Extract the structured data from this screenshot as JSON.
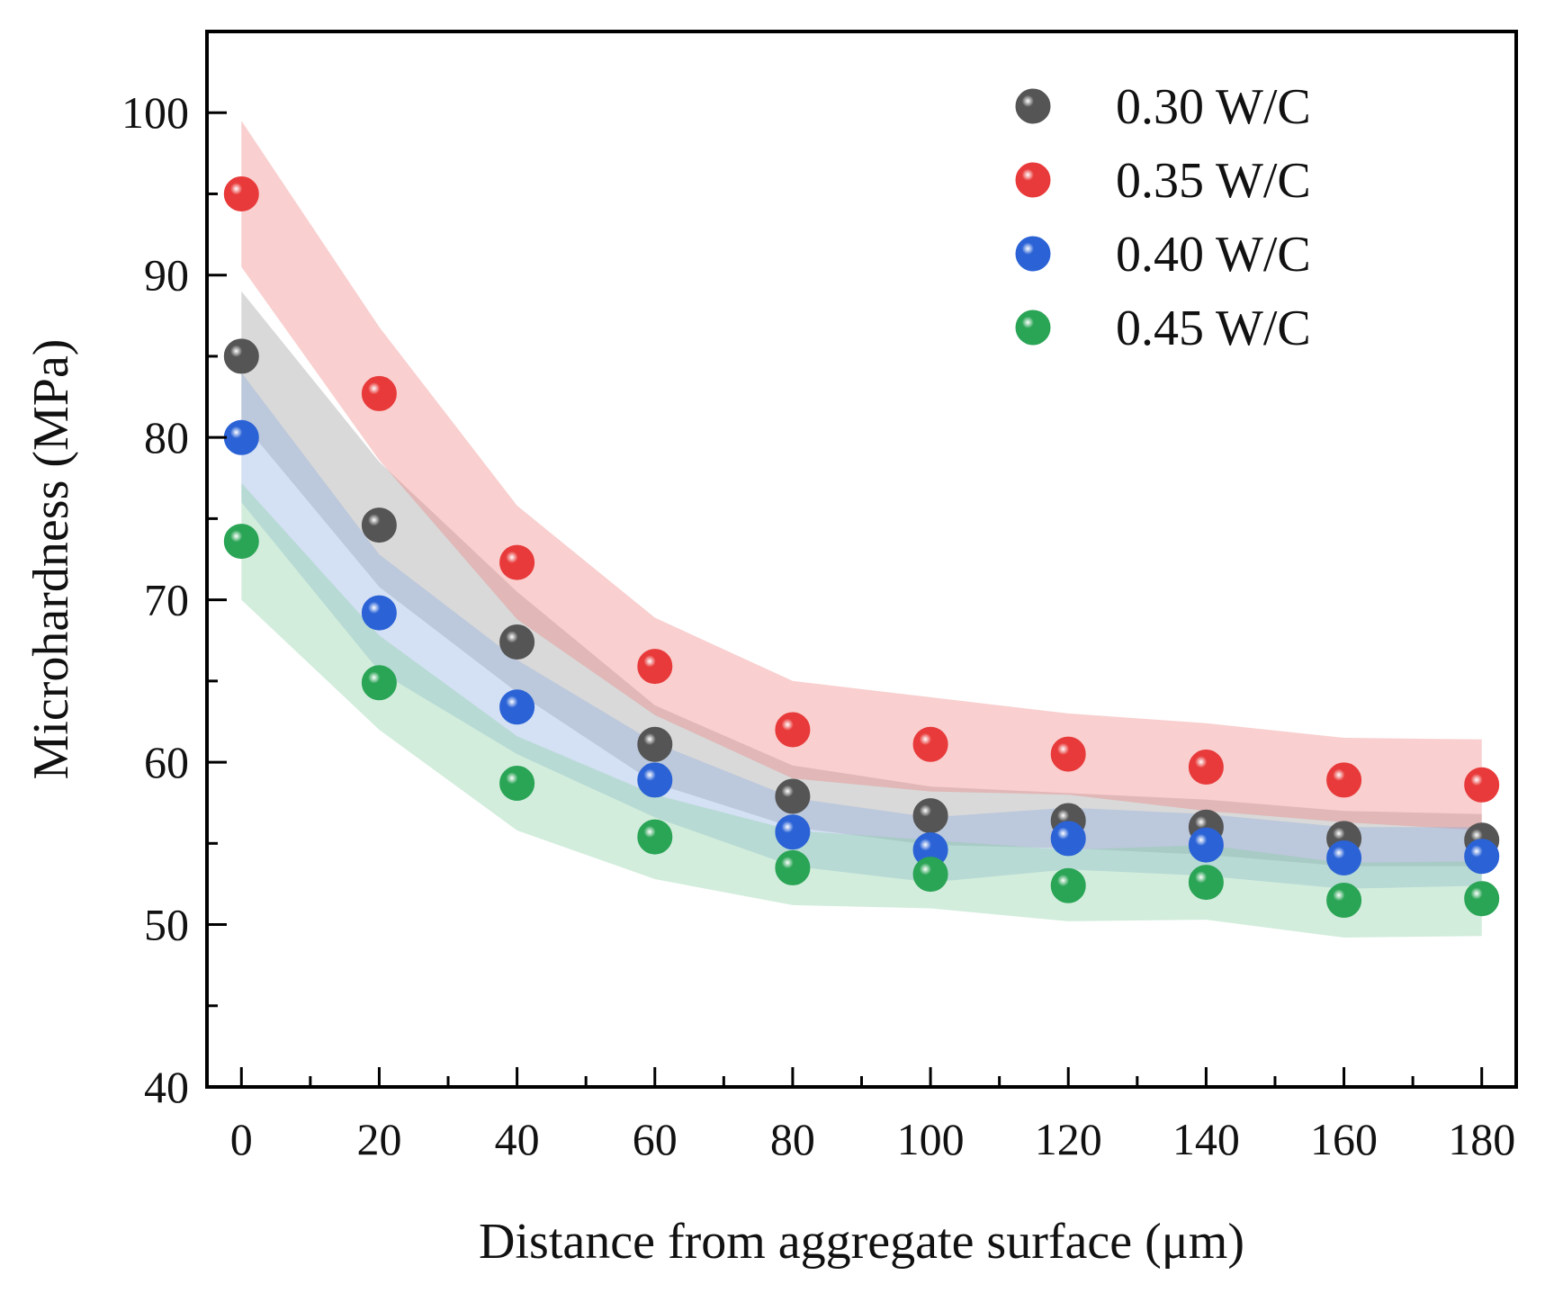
{
  "chart_data": {
    "type": "scatter",
    "title": "",
    "xlabel": "Distance from aggregate surface (μm)",
    "ylabel": "Microhardness (MPa)",
    "xlim": [
      -5,
      185
    ],
    "ylim": [
      40,
      105
    ],
    "xticks": [
      0,
      20,
      40,
      60,
      80,
      100,
      120,
      140,
      160,
      180
    ],
    "yticks": [
      40,
      50,
      60,
      70,
      80,
      90,
      100
    ],
    "x": [
      0,
      20,
      40,
      60,
      80,
      100,
      120,
      140,
      160,
      180
    ],
    "legend_position": "top-right",
    "series": [
      {
        "name": "0.30 W/C",
        "color": "#555555",
        "band_color": "#9a9a9a",
        "values": [
          85,
          74.6,
          67.4,
          61.1,
          57.9,
          56.7,
          56.4,
          56,
          55.3,
          55.2
        ],
        "upper": [
          89,
          78.5,
          70.5,
          63.5,
          59.8,
          58.5,
          58.1,
          57.7,
          57,
          56.8
        ],
        "lower": [
          81,
          70.8,
          64.3,
          58.7,
          56,
          54.9,
          54.7,
          54.3,
          53.6,
          53.6
        ]
      },
      {
        "name": "0.35 W/C",
        "color": "#e83a3a",
        "band_color": "#f08080",
        "values": [
          95,
          82.7,
          72.3,
          65.9,
          62,
          61.1,
          60.5,
          59.7,
          58.9,
          58.6
        ],
        "upper": [
          99.5,
          86.8,
          75.8,
          68.9,
          65,
          64,
          63,
          62.4,
          61.5,
          61.4
        ],
        "lower": [
          90.5,
          78.6,
          68.8,
          62.9,
          59,
          58.2,
          58,
          57,
          56.3,
          55.8
        ]
      },
      {
        "name": "0.40 W/C",
        "color": "#2b63d6",
        "band_color": "#8eaee0",
        "values": [
          80,
          69.2,
          63.4,
          58.9,
          55.7,
          54.6,
          55.3,
          54.9,
          54.1,
          54.2
        ],
        "upper": [
          84,
          72.8,
          66.3,
          61.2,
          57.8,
          56.6,
          57.2,
          56.8,
          56,
          56
        ],
        "lower": [
          76,
          65.6,
          60.5,
          56.6,
          53.6,
          52.6,
          53.4,
          53,
          52.2,
          52.4
        ]
      },
      {
        "name": "0.45 W/C",
        "color": "#2aa455",
        "band_color": "#88cfa2",
        "values": [
          73.6,
          64.9,
          58.7,
          55.4,
          53.5,
          53.1,
          52.4,
          52.6,
          51.5,
          51.6
        ],
        "upper": [
          77.2,
          67.8,
          61.6,
          58,
          55.8,
          55.2,
          54.6,
          54.9,
          53.8,
          53.9
        ],
        "lower": [
          70,
          62,
          55.8,
          52.8,
          51.2,
          51,
          50.2,
          50.3,
          49.2,
          49.3
        ]
      }
    ]
  }
}
